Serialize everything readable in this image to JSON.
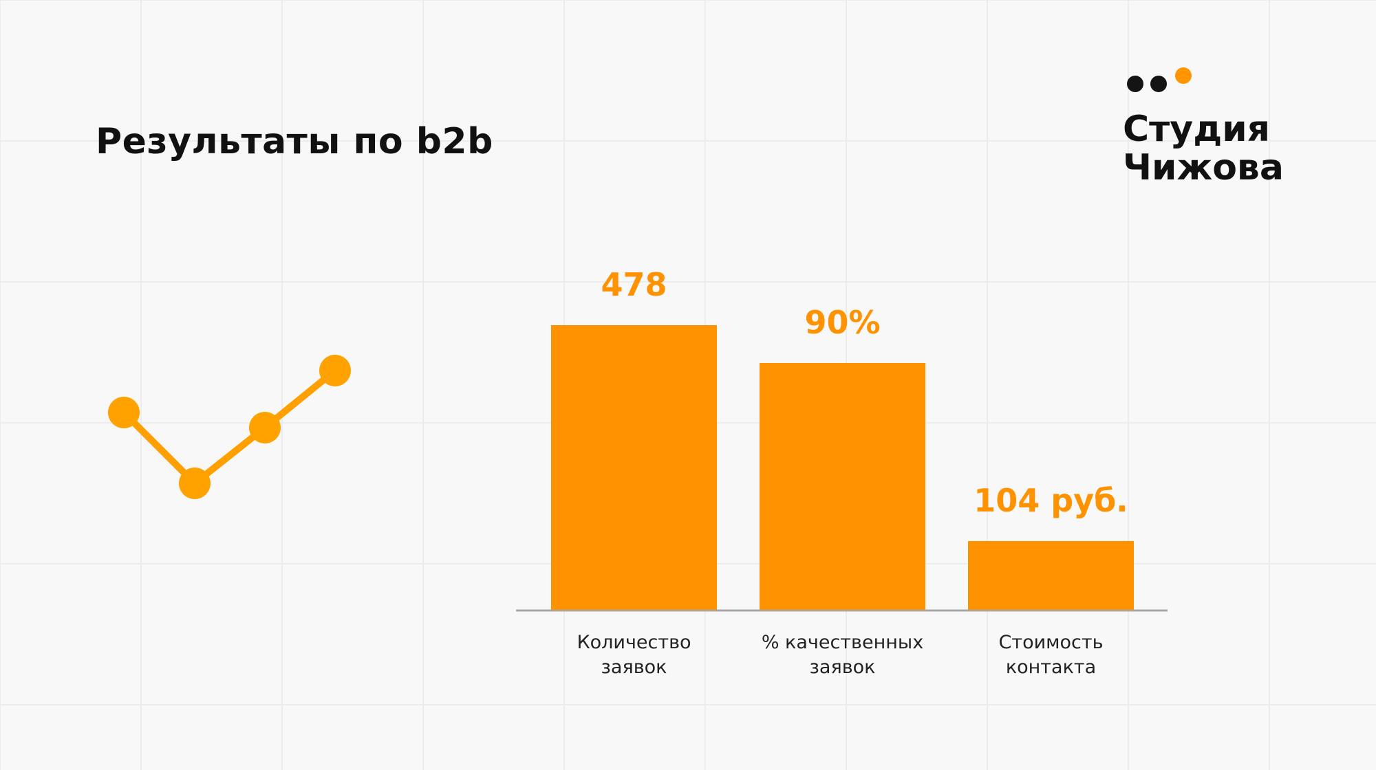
{
  "title": "Результаты по b2b",
  "logo": {
    "line1": "Студия",
    "line2": "Чижова",
    "dot_colors": [
      "#141414",
      "#141414",
      "#FF9500"
    ]
  },
  "colors": {
    "accent": "#FF9200",
    "bar": "#FF9200",
    "axis": "#a7a7a7",
    "text": "#111111"
  },
  "chart_data": {
    "type": "bar",
    "categories": [
      [
        "Количество",
        "заявок"
      ],
      [
        "% качественных",
        "заявок"
      ],
      [
        "Стоимость",
        "контакта"
      ]
    ],
    "data_labels": [
      "478",
      "90%",
      "104 руб."
    ],
    "values": [
      478,
      90,
      104
    ],
    "title": "",
    "xlabel": "",
    "ylabel": "",
    "grid": false,
    "legend": "none"
  }
}
